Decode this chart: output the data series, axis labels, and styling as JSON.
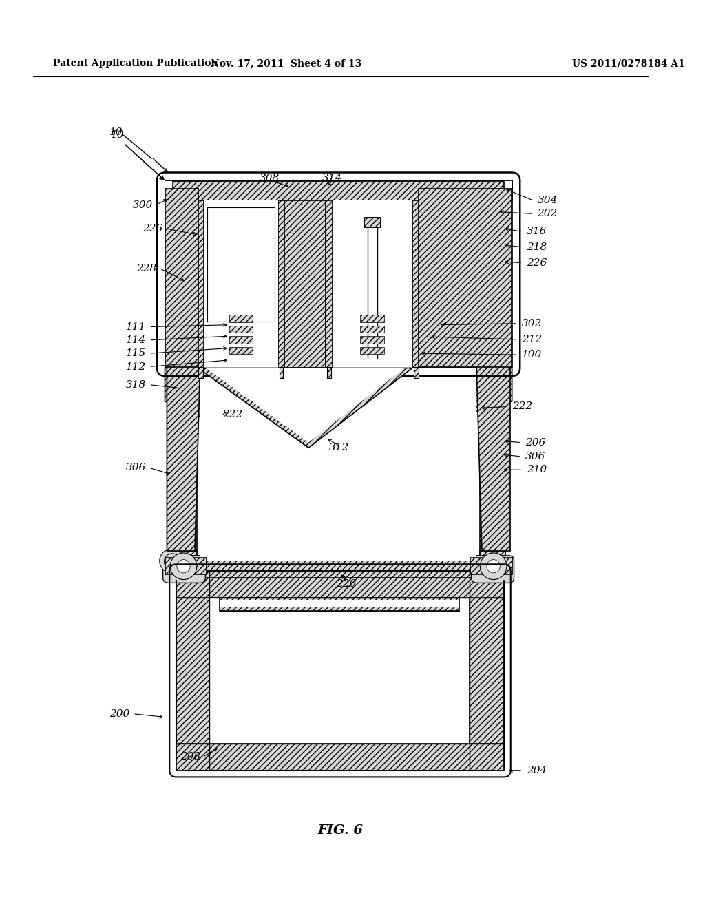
{
  "background_color": "#ffffff",
  "header_left": "Patent Application Publication",
  "header_center": "Nov. 17, 2011  Sheet 4 of 13",
  "header_right": "US 2011/0278184 A1",
  "figure_label": "FIG. 6",
  "hatch_color": "#cccccc",
  "line_color": "#000000"
}
